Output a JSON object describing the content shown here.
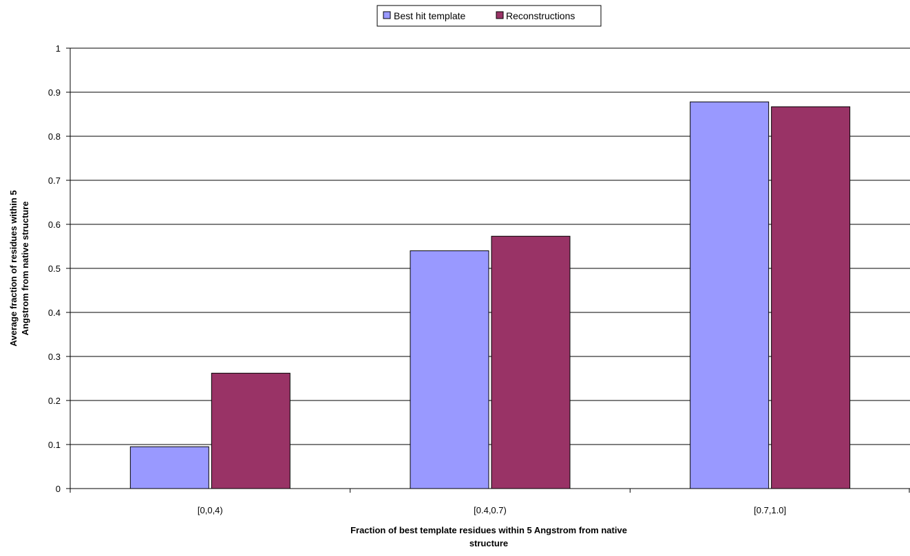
{
  "chart_data": {
    "type": "bar",
    "categories": [
      "[0,0,4)",
      "[0.4,0.7)",
      "[0.7,1.0]"
    ],
    "series": [
      {
        "name": "Best hit template",
        "values": [
          0.095,
          0.54,
          0.878
        ],
        "color": "#9999ff"
      },
      {
        "name": "Reconstructions",
        "values": [
          0.262,
          0.573,
          0.867
        ],
        "color": "#993366"
      }
    ],
    "title": "",
    "xlabel": [
      "Fraction of best template residues within 5 Angstrom from native",
      "structure"
    ],
    "ylabel": [
      "Average fraction of residues within 5",
      "Angstrom from native structure"
    ],
    "ylim": [
      0,
      1
    ],
    "yticks": [
      0,
      0.1,
      0.2,
      0.3,
      0.4,
      0.5,
      0.6,
      0.7,
      0.8,
      0.9,
      1
    ],
    "grid": true,
    "legend_position": "top-center"
  }
}
